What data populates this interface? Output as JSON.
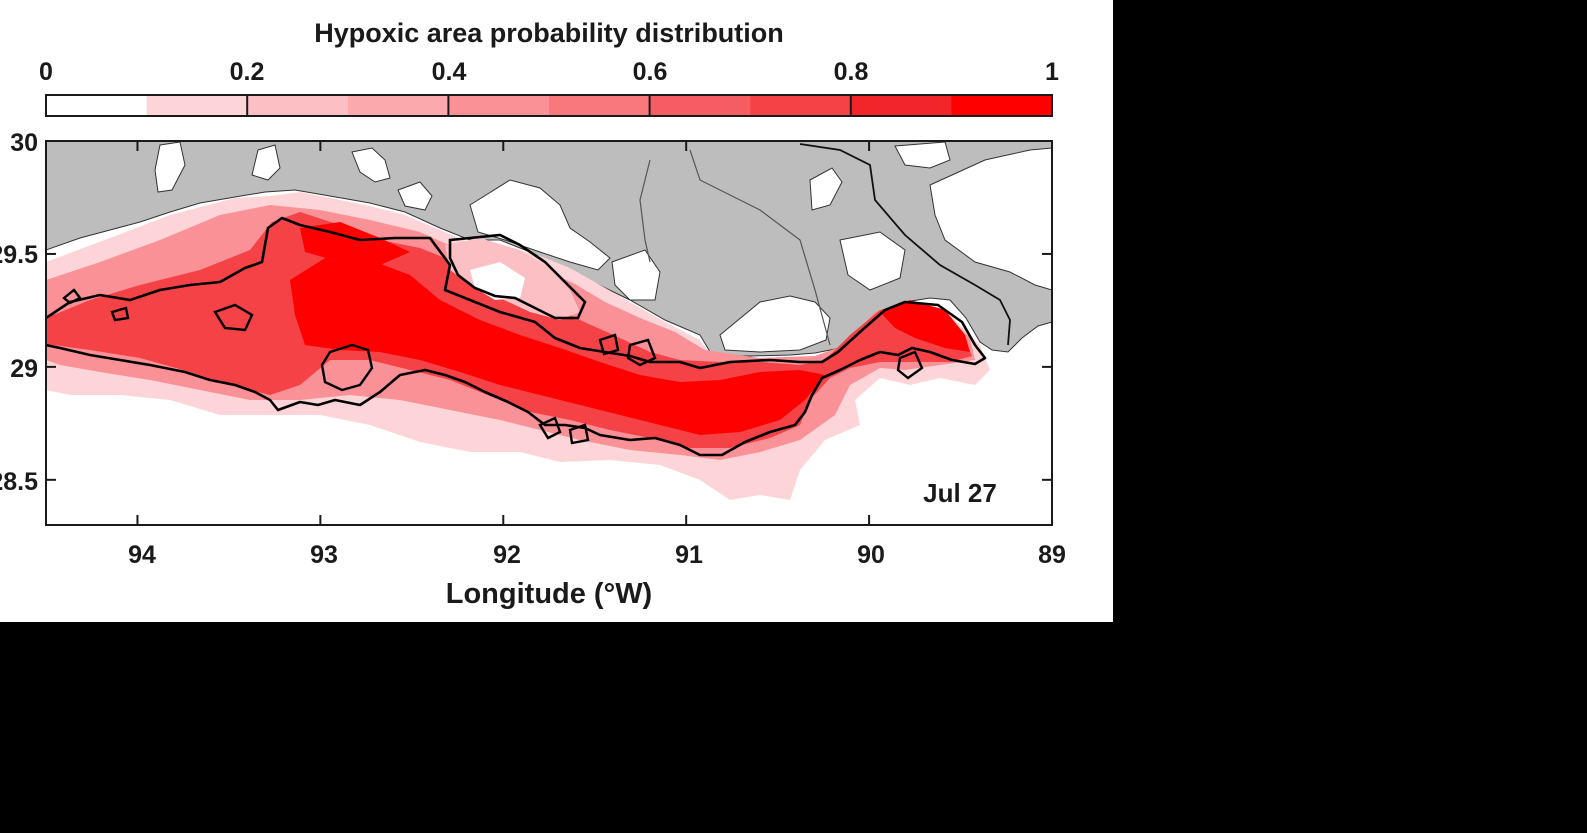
{
  "colorbar": {
    "title": "Hypoxic area probability distribution",
    "tick_labels": [
      "0",
      "0.2",
      "0.4",
      "0.6",
      "0.8",
      "1"
    ],
    "colors": [
      "#ffffff",
      "#fdd5d8",
      "#fcc0c4",
      "#fba9ad",
      "#fa9196",
      "#f8787d",
      "#f65d62",
      "#f44246",
      "#f2262a",
      "#ff0000"
    ]
  },
  "map": {
    "x_axis_label": "Longitude (°W)",
    "x_tick_labels": [
      "94",
      "93",
      "92",
      "91",
      "90",
      "89"
    ],
    "y_tick_labels": [
      "30",
      "29.5",
      "29",
      "28.5"
    ],
    "date_label": "Jul 27",
    "land_color": "#bdbdbd",
    "ocean_color": "#ffffff",
    "contour_color": "#000000"
  },
  "chart_data": {
    "type": "heatmap",
    "title": "Hypoxic area probability distribution",
    "xlabel": "Longitude (°W)",
    "ylabel": "",
    "xlim": [
      94.5,
      89
    ],
    "ylim": [
      28.3,
      30
    ],
    "x_ticks": [
      94,
      93,
      92,
      91,
      90,
      89
    ],
    "y_ticks": [
      30,
      29.5,
      29,
      28.5
    ],
    "value_range": [
      0,
      1
    ],
    "annotation": "Jul 27"
  }
}
